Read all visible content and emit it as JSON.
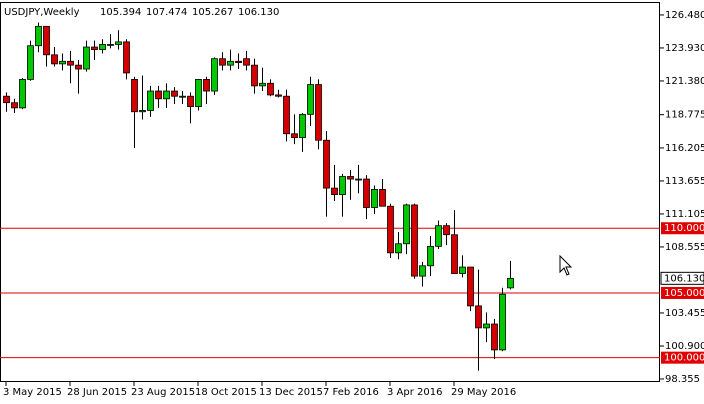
{
  "chart_data": {
    "type": "candlestick",
    "title": "USDJPY,Weekly",
    "header_values": [
      "105.394",
      "107.474",
      "105.267",
      "106.130"
    ],
    "categories": [
      "3 May 2015",
      null,
      null,
      null,
      null,
      null,
      null,
      null,
      "28 Jun 2015",
      null,
      null,
      null,
      null,
      null,
      null,
      null,
      "23 Aug 2015",
      null,
      null,
      null,
      null,
      null,
      null,
      null,
      "18 Oct 2015",
      null,
      null,
      null,
      null,
      null,
      null,
      null,
      "13 Dec 2015",
      null,
      null,
      null,
      null,
      null,
      null,
      null,
      "7 Feb 2016",
      null,
      null,
      null,
      null,
      null,
      null,
      null,
      "3 Apr 2016",
      null,
      null,
      null,
      null,
      null,
      null,
      null,
      "29 May 2016",
      null,
      null,
      null,
      null,
      null,
      null,
      null
    ],
    "open": [
      120.2,
      119.7,
      119.3,
      121.5,
      124.1,
      125.6,
      123.4,
      122.7,
      122.9,
      122.6,
      122.3,
      124.0,
      123.8,
      124.2,
      124.2,
      124.4,
      121.5,
      119.0,
      119.1,
      120.6,
      120.0,
      120.6,
      120.2,
      120.2,
      119.4,
      121.5,
      120.6,
      123.1,
      122.6,
      122.9,
      123.1,
      122.6,
      121.0,
      121.2,
      120.3,
      120.2,
      117.3,
      117.0,
      118.8,
      121.1,
      116.8,
      113.1,
      112.6,
      114.0,
      113.8,
      113.8,
      111.6,
      113.0,
      111.7,
      108.1,
      108.8,
      111.8,
      106.3,
      107.1,
      108.6,
      110.2,
      109.5,
      106.5,
      107.0,
      104.0,
      102.3,
      102.6,
      100.6,
      105.394
    ],
    "high": [
      120.5,
      120.0,
      121.6,
      124.5,
      125.9,
      125.6,
      124.0,
      123.5,
      123.7,
      123.0,
      124.5,
      124.5,
      124.6,
      125.0,
      125.3,
      124.6,
      121.7,
      121.8,
      121.0,
      121.0,
      121.2,
      120.9,
      120.6,
      120.5,
      121.5,
      121.7,
      123.2,
      123.6,
      123.8,
      123.5,
      123.7,
      123.1,
      122.4,
      121.5,
      120.7,
      120.7,
      118.8,
      118.9,
      121.7,
      121.5,
      117.5,
      114.9,
      114.2,
      114.5,
      114.9,
      114.1,
      113.3,
      113.8,
      111.9,
      109.7,
      111.9,
      111.9,
      107.4,
      109.4,
      110.6,
      110.4,
      111.4,
      107.9,
      107.0,
      106.8,
      103.5,
      103.0,
      105.4,
      107.474
    ],
    "low": [
      119.0,
      118.9,
      119.2,
      121.4,
      123.6,
      122.5,
      122.5,
      122.2,
      121.2,
      120.4,
      122.1,
      123.0,
      123.5,
      123.9,
      123.8,
      121.5,
      116.2,
      118.4,
      118.6,
      119.3,
      119.3,
      119.6,
      119.6,
      118.1,
      119.1,
      119.6,
      120.3,
      122.2,
      122.2,
      122.3,
      122.2,
      120.4,
      120.6,
      120.2,
      120.1,
      116.7,
      116.5,
      115.9,
      117.9,
      116.1,
      110.9,
      112.1,
      110.9,
      112.2,
      112.7,
      110.7,
      111.1,
      111.7,
      107.7,
      107.6,
      108.0,
      106.1,
      105.5,
      106.3,
      108.4,
      108.7,
      106.5,
      106.2,
      103.6,
      99.0,
      101.2,
      99.9,
      100.5,
      105.267
    ],
    "close": [
      119.7,
      119.3,
      121.5,
      124.1,
      125.6,
      123.4,
      122.7,
      122.9,
      122.6,
      122.3,
      124.0,
      123.8,
      124.2,
      124.2,
      124.4,
      122.0,
      119.0,
      119.1,
      120.6,
      120.0,
      120.6,
      120.2,
      120.2,
      119.4,
      121.5,
      120.6,
      123.1,
      122.6,
      122.9,
      122.8,
      122.6,
      121.0,
      121.2,
      120.3,
      120.2,
      117.3,
      117.0,
      118.8,
      121.1,
      116.8,
      113.1,
      112.6,
      114.0,
      113.8,
      113.8,
      111.6,
      113.0,
      111.7,
      108.1,
      108.8,
      111.8,
      106.3,
      107.1,
      108.6,
      110.2,
      109.5,
      106.5,
      107.0,
      104.0,
      102.3,
      102.6,
      100.6,
      104.9,
      106.13
    ],
    "up_color": "#00c800",
    "down_color": "#d40000",
    "line_color": "#e00000",
    "ylim": [
      98.12,
      127.48
    ],
    "yticks": [
      {
        "value": 126.48,
        "label": "126.480"
      },
      {
        "value": 123.93,
        "label": "123.930"
      },
      {
        "value": 121.38,
        "label": "121.380"
      },
      {
        "value": 118.775,
        "label": "118.775"
      },
      {
        "value": 116.205,
        "label": "116.205"
      },
      {
        "value": 113.655,
        "label": "113.655"
      },
      {
        "value": 111.105,
        "label": "111.105"
      },
      {
        "value": 108.555,
        "label": "108.555"
      },
      {
        "value": 103.455,
        "label": "103.455"
      },
      {
        "value": 100.9,
        "label": "100.900"
      },
      {
        "value": 98.355,
        "label": "98.355"
      }
    ],
    "hlines": [
      {
        "value": 110,
        "label": "110.000"
      },
      {
        "value": 105,
        "label": "105.000"
      },
      {
        "value": 100,
        "label": "100.000"
      }
    ],
    "current_price": {
      "value": 106.13,
      "label": "106.130"
    },
    "grid": false
  }
}
